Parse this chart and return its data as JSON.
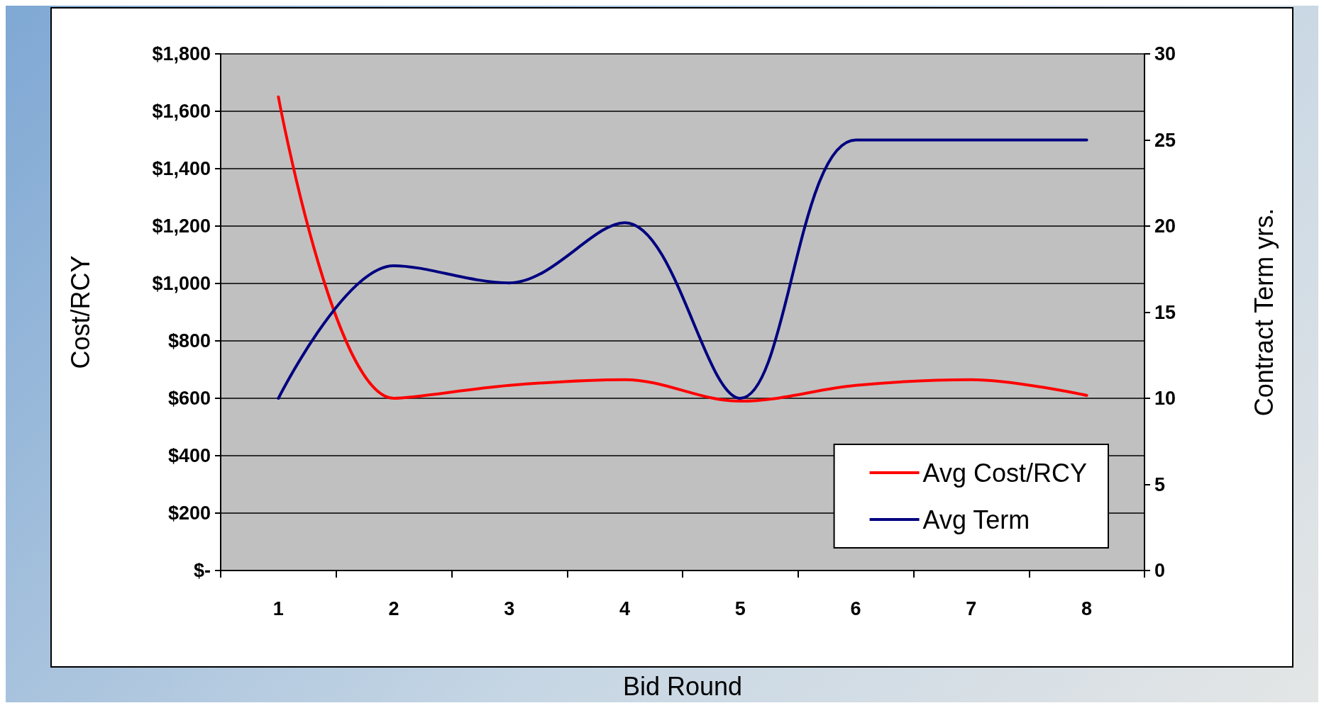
{
  "chart_data": {
    "type": "line",
    "xlabel": "Bid Round",
    "ylabel": "Cost/RCY",
    "y2label": "Contract Term yrs.",
    "categories": [
      "1",
      "2",
      "3",
      "4",
      "5",
      "6",
      "7",
      "8"
    ],
    "series": [
      {
        "name": "Avg Cost/RCY",
        "color": "#ff0000",
        "values": [
          1650,
          600,
          645,
          665,
          590,
          645,
          665,
          610
        ]
      },
      {
        "name": "Avg Term",
        "color": "#000080",
        "axis": "y2",
        "values": [
          10,
          17.7,
          16.7,
          20.2,
          10,
          25,
          25,
          25
        ]
      }
    ],
    "ylim": [
      0,
      1800
    ],
    "yticks": [
      {
        "value": 0,
        "label": "$-"
      },
      {
        "value": 200,
        "label": "$200"
      },
      {
        "value": 400,
        "label": "$400"
      },
      {
        "value": 600,
        "label": "$600"
      },
      {
        "value": 800,
        "label": "$800"
      },
      {
        "value": 1000,
        "label": "$1,000"
      },
      {
        "value": 1200,
        "label": "$1,200"
      },
      {
        "value": 1400,
        "label": "$1,400"
      },
      {
        "value": 1600,
        "label": "$1,600"
      },
      {
        "value": 1800,
        "label": "$1,800"
      }
    ],
    "y2lim": [
      0,
      30
    ],
    "y2ticks": [
      0,
      5,
      10,
      15,
      20,
      25,
      30
    ],
    "grid": "y",
    "legend": "bottom right",
    "marker": "none",
    "line_style": "solid"
  }
}
